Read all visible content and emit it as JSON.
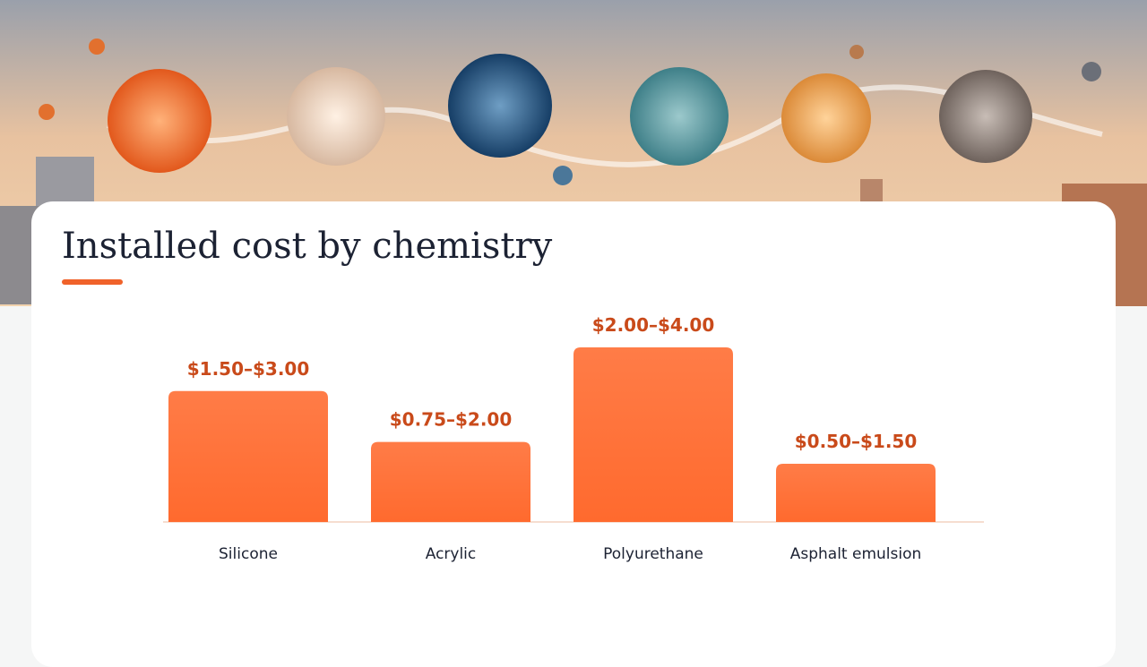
{
  "chart_data": {
    "type": "range-bar",
    "title": "Installed cost by chemistry",
    "categories": [
      "Silicone",
      "Acrylic",
      "Polyurethane",
      "Asphalt emulsion"
    ],
    "low": [
      1.5,
      0.75,
      2.0,
      0.5
    ],
    "high": [
      3.0,
      2.0,
      4.0,
      1.5
    ],
    "value_labels": [
      "$1.50–$3.00",
      "$0.75–$2.00",
      "$2.00–$4.00",
      "$0.50–$1.50"
    ],
    "color": "#ff6a2e",
    "label_color": "#c94a1a"
  }
}
